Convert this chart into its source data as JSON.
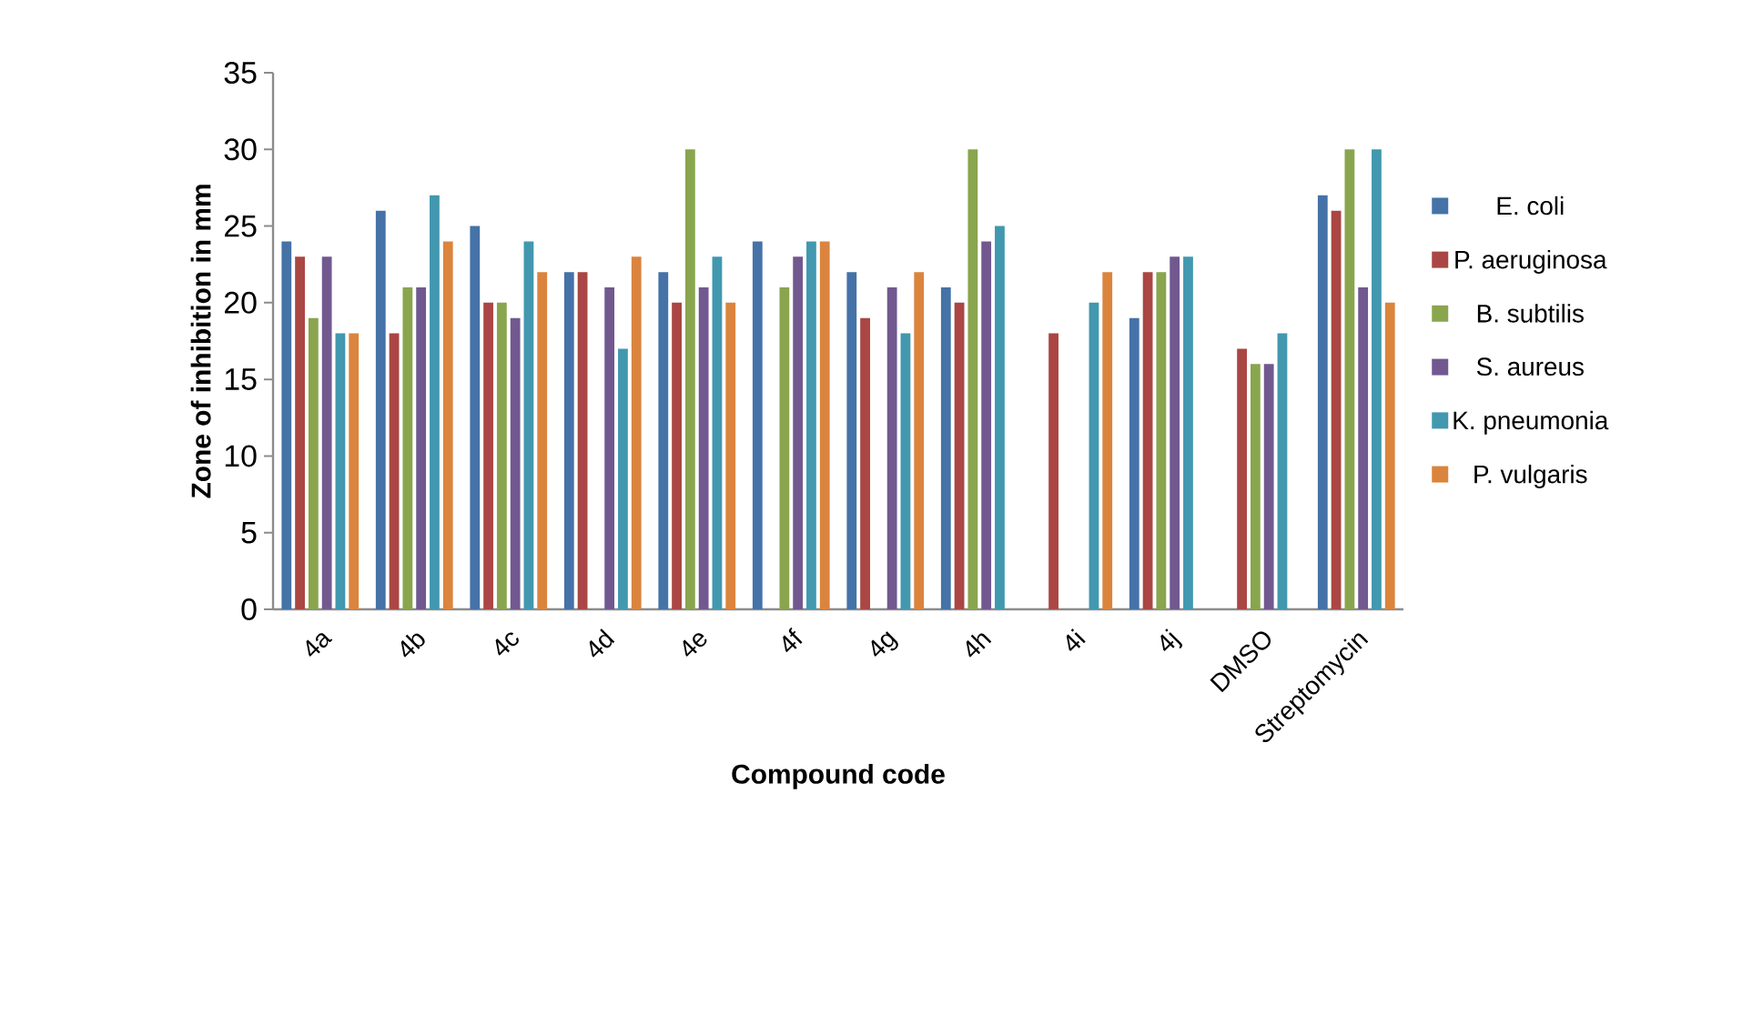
{
  "chart_data": {
    "type": "bar",
    "xlabel": "Compound code",
    "ylabel": "Zone of inhibition in mm",
    "categories": [
      "4a",
      "4b",
      "4c",
      "4d",
      "4e",
      "4f",
      "4g",
      "4h",
      "4i",
      "4j",
      "DMSO",
      "Streptomycin"
    ],
    "series": [
      {
        "name": "E. coli",
        "color": "#4572a7",
        "values": [
          24,
          26,
          25,
          22,
          22,
          24,
          22,
          21,
          null,
          19,
          null,
          27
        ]
      },
      {
        "name": "P. aeruginosa",
        "color": "#aa4643",
        "values": [
          23,
          18,
          20,
          22,
          20,
          null,
          19,
          20,
          18,
          22,
          17,
          26
        ]
      },
      {
        "name": "B.  subtilis",
        "color": "#89a54e",
        "values": [
          19,
          21,
          20,
          null,
          30,
          21,
          null,
          30,
          null,
          22,
          16,
          30
        ]
      },
      {
        "name": "S.  aureus",
        "color": "#71588f",
        "values": [
          23,
          21,
          19,
          21,
          21,
          23,
          21,
          24,
          null,
          23,
          16,
          21
        ]
      },
      {
        "name": "K. pneumonia",
        "color": "#4198af",
        "values": [
          18,
          27,
          24,
          17,
          23,
          24,
          18,
          25,
          20,
          23,
          18,
          30
        ]
      },
      {
        "name": "P. vulgaris",
        "color": "#db843d",
        "values": [
          18,
          24,
          22,
          23,
          20,
          24,
          22,
          null,
          22,
          null,
          null,
          20
        ]
      }
    ],
    "ylim": [
      0,
      35
    ],
    "yticks": [
      0,
      5,
      10,
      15,
      20,
      25,
      30,
      35
    ],
    "grid": false,
    "legend": "right"
  }
}
